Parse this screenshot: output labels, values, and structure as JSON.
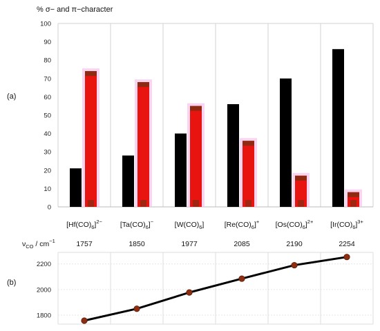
{
  "chart_data": [
    {
      "panel": "(a)",
      "type": "bar",
      "ylabel": "% σ− and π−character",
      "ylim": [
        0,
        100
      ],
      "yticks": [
        0,
        10,
        20,
        30,
        40,
        50,
        60,
        70,
        80,
        90,
        100
      ],
      "categories": [
        "[Hf(CO)6]2−",
        "[Ta(CO)6]−",
        "[W(CO)6]",
        "[Re(CO)6]+",
        "[Os(CO)6]2+",
        "[Ir(CO)6]3+"
      ],
      "category_parts": [
        {
          "base": "[Hf(CO)",
          "sub": "6",
          "close": "]",
          "sup": "2−"
        },
        {
          "base": "[Ta(CO)",
          "sub": "6",
          "close": "]",
          "sup": "−"
        },
        {
          "base": "[W(CO)",
          "sub": "6",
          "close": "]",
          "sup": ""
        },
        {
          "base": "[Re(CO)",
          "sub": "6",
          "close": "]",
          "sup": "+"
        },
        {
          "base": "[Os(CO)",
          "sub": "6",
          "close": "]",
          "sup": "2+"
        },
        {
          "base": "[Ir(CO)",
          "sub": "6",
          "close": "]",
          "sup": "3+"
        }
      ],
      "series": [
        {
          "values": [
            21,
            28,
            40,
            56,
            70,
            86
          ],
          "color": "#000000"
        },
        {
          "values": [
            74,
            68,
            55,
            36,
            17,
            8
          ],
          "color": "#e8140f"
        }
      ],
      "grid": true,
      "legend": "none"
    },
    {
      "panel": "(b)",
      "type": "line",
      "xlabel_main": "ν",
      "xlabel_sub": "CO",
      "xlabel_rest": " / cm",
      "xlabel_sup": "−1",
      "values": [
        1757,
        1850,
        1977,
        2085,
        2190,
        2254
      ],
      "yticks": [
        1800,
        2000,
        2200
      ],
      "ylim": [
        1730,
        2290
      ],
      "line_color": "#000000",
      "marker_color": "#8b2e12"
    }
  ]
}
